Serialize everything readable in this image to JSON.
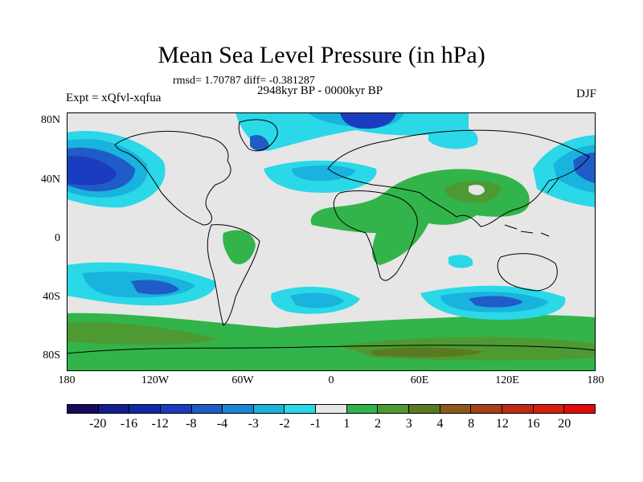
{
  "title": "Mean Sea Level Pressure (in hPa)",
  "stats": "rmsd= 1.70787 diff= -0.381287",
  "period": "2948kyr BP - 0000kyr BP",
  "experiment": "Expt = xQfvl-xqfua",
  "season": "DJF",
  "lat_labels": [
    "80N",
    "40N",
    "0",
    "40S",
    "80S"
  ],
  "lon_labels": [
    "180",
    "120W",
    "60W",
    "0",
    "60E",
    "120E",
    "180"
  ],
  "colorbar": {
    "labels": [
      "-20",
      "-16",
      "-12",
      "-8",
      "-4",
      "-3",
      "-2",
      "-1",
      "1",
      "2",
      "3",
      "4",
      "8",
      "12",
      "16",
      "20"
    ],
    "colors": [
      "#1a0a5c",
      "#141e8c",
      "#0f2aa6",
      "#1a3dbf",
      "#1f5cc8",
      "#1a86d2",
      "#19b3dd",
      "#2ad8e8",
      "#e6e6e6",
      "#32b44a",
      "#4d9a32",
      "#5a7a22",
      "#8b5a1a",
      "#a8401a",
      "#c02a14",
      "#d81e0f",
      "#e00a0a"
    ]
  },
  "colors": {
    "neutral": "#e6e6e6",
    "blue_light": "#2ad8e8",
    "blue_mid": "#19b3dd",
    "blue_dark": "#1a3dbf",
    "blue_deep": "#141e8c",
    "green": "#32b44a",
    "green_dark": "#4d9a32",
    "olive": "#5a7a22"
  }
}
